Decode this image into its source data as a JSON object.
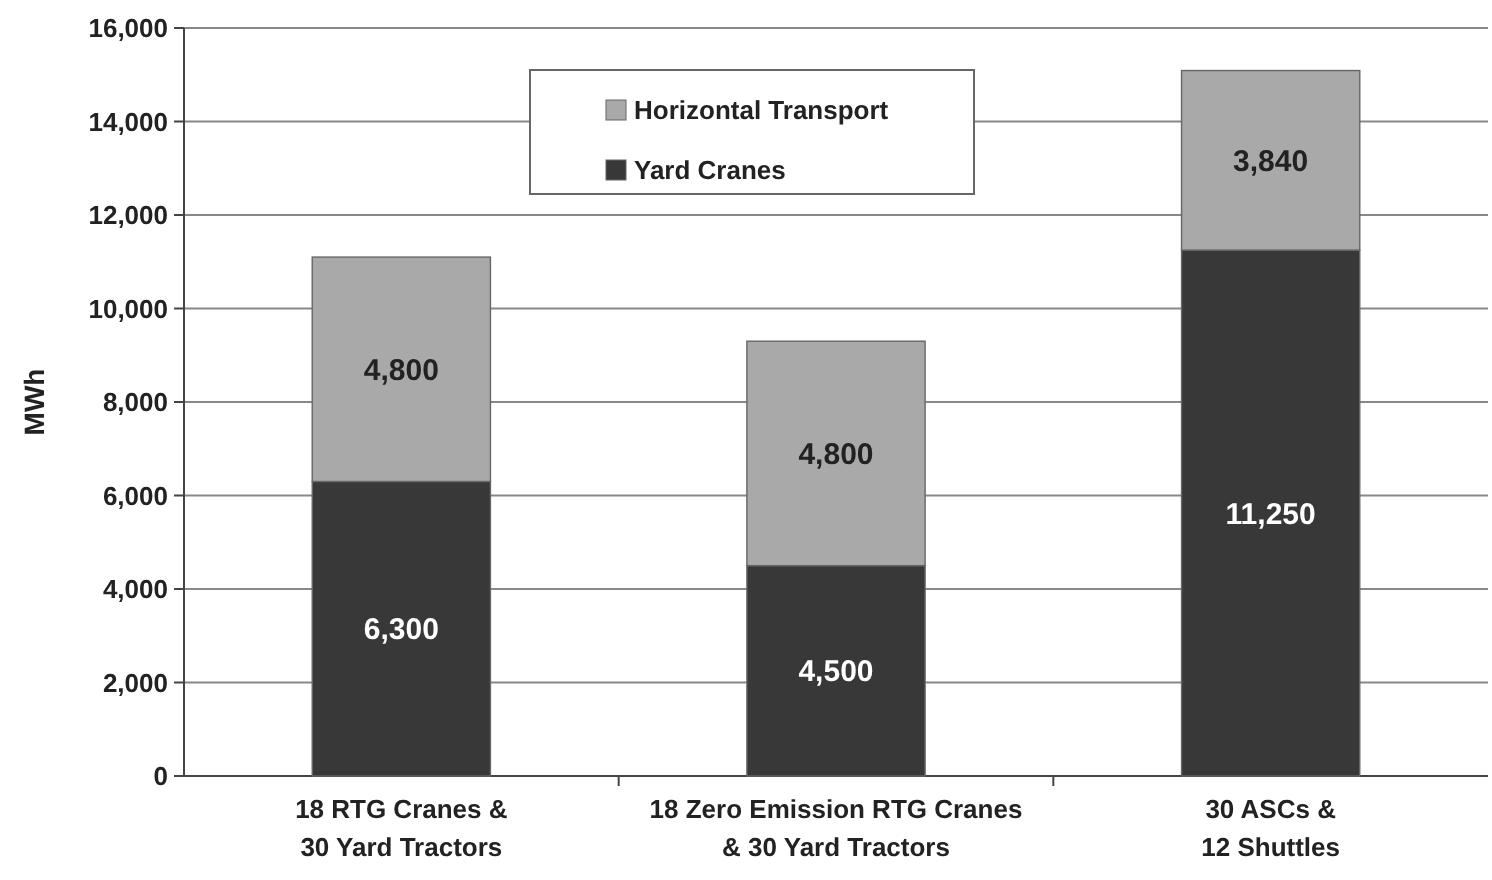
{
  "chart_data": {
    "type": "bar",
    "stacked": true,
    "ylabel": "MWh",
    "categories": [
      "18 RTG Cranes &\n30 Yard Tractors",
      "18 Zero Emission RTG Cranes\n& 30 Yard Tractors",
      "30 ASCs &\n12 Shuttles"
    ],
    "series": [
      {
        "name": "Yard Cranes",
        "color": "#383838",
        "values": [
          6300,
          4500,
          11250
        ],
        "value_labels": [
          "6,300",
          "4,500",
          "11,250"
        ]
      },
      {
        "name": "Horizontal Transport",
        "color": "#a9a9a9",
        "values": [
          4800,
          4800,
          3840
        ],
        "value_labels": [
          "4,800",
          "4,800",
          "3,840"
        ]
      }
    ],
    "ylim": [
      0,
      16000
    ],
    "yticks": [
      {
        "value": 0,
        "label": "0"
      },
      {
        "value": 2000,
        "label": "2,000"
      },
      {
        "value": 4000,
        "label": "4,000"
      },
      {
        "value": 6000,
        "label": "6,000"
      },
      {
        "value": 8000,
        "label": "8,000"
      },
      {
        "value": 10000,
        "label": "10,000"
      },
      {
        "value": 12000,
        "label": "12,000"
      },
      {
        "value": 14000,
        "label": "14,000"
      },
      {
        "value": 16000,
        "label": "16,000"
      }
    ],
    "grid": "y",
    "legend": "top"
  }
}
